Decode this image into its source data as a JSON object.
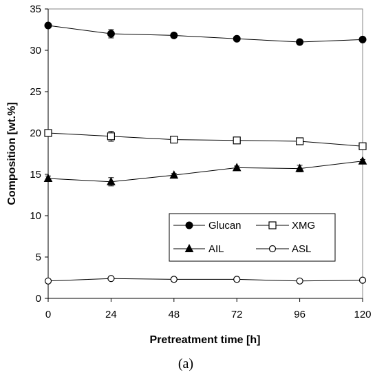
{
  "caption": "(a)",
  "chart_data": {
    "type": "line",
    "title": "",
    "xlabel": "Pretreatment time [h]",
    "ylabel": "Composition  [wt.%]",
    "x": [
      0,
      24,
      48,
      72,
      96,
      120
    ],
    "xlim": [
      0,
      120
    ],
    "ylim": [
      0,
      35
    ],
    "xticks": [
      0,
      24,
      48,
      72,
      96,
      120
    ],
    "yticks": [
      0,
      5,
      10,
      15,
      20,
      25,
      30,
      35
    ],
    "grid": false,
    "legend_position": "lower-right",
    "series": [
      {
        "name": "Glucan",
        "marker": "circle-filled",
        "values": [
          33.0,
          32.0,
          31.8,
          31.4,
          31.0,
          31.3
        ],
        "errors": [
          0.1,
          0.5,
          0.2,
          0.2,
          0.2,
          0.1
        ]
      },
      {
        "name": "XMG",
        "marker": "square-open",
        "values": [
          20.0,
          19.6,
          19.2,
          19.1,
          19.0,
          18.4
        ],
        "errors": [
          0.1,
          0.6,
          0.2,
          0.1,
          0.2,
          0.3
        ]
      },
      {
        "name": "AIL",
        "marker": "triangle-filled",
        "values": [
          14.5,
          14.1,
          14.9,
          15.8,
          15.7,
          16.6
        ],
        "errors": [
          0.3,
          0.5,
          0.2,
          0.2,
          0.4,
          0.2
        ]
      },
      {
        "name": "ASL",
        "marker": "circle-open",
        "values": [
          2.1,
          2.4,
          2.3,
          2.3,
          2.1,
          2.2
        ],
        "errors": [
          0.1,
          0.1,
          0.1,
          0.1,
          0.1,
          0.1
        ]
      }
    ],
    "colors": {
      "line": "#000000",
      "axis": "#000000",
      "frame": "#868686"
    }
  }
}
